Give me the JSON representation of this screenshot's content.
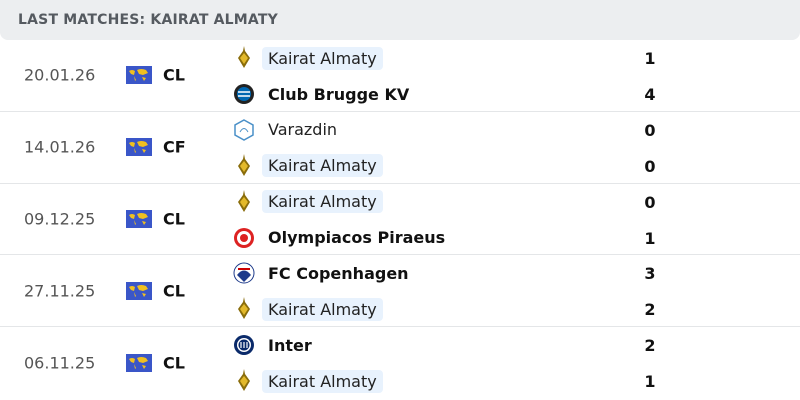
{
  "header": {
    "title": "LAST MATCHES: KAIRAT ALMATY"
  },
  "matches": [
    {
      "date": "20.01.26",
      "competition": "CL",
      "home": {
        "name": "Kairat Almaty",
        "logo": "kairat-logo",
        "highlight": true,
        "winner": false,
        "score": "1"
      },
      "away": {
        "name": "Club Brugge KV",
        "logo": "club-brugge-logo",
        "highlight": false,
        "winner": true,
        "score": "4"
      }
    },
    {
      "date": "14.01.26",
      "competition": "CF",
      "home": {
        "name": "Varazdin",
        "logo": "varazdin-logo",
        "highlight": false,
        "winner": false,
        "score": "0"
      },
      "away": {
        "name": "Kairat Almaty",
        "logo": "kairat-logo",
        "highlight": true,
        "winner": false,
        "score": "0"
      }
    },
    {
      "date": "09.12.25",
      "competition": "CL",
      "home": {
        "name": "Kairat Almaty",
        "logo": "kairat-logo",
        "highlight": true,
        "winner": false,
        "score": "0"
      },
      "away": {
        "name": "Olympiacos Piraeus",
        "logo": "olympiacos-logo",
        "highlight": false,
        "winner": true,
        "score": "1"
      }
    },
    {
      "date": "27.11.25",
      "competition": "CL",
      "home": {
        "name": "FC Copenhagen",
        "logo": "copenhagen-logo",
        "highlight": false,
        "winner": true,
        "score": "3"
      },
      "away": {
        "name": "Kairat Almaty",
        "logo": "kairat-logo",
        "highlight": true,
        "winner": false,
        "score": "2"
      }
    },
    {
      "date": "06.11.25",
      "competition": "CL",
      "home": {
        "name": "Inter",
        "logo": "inter-logo",
        "highlight": false,
        "winner": true,
        "score": "2"
      },
      "away": {
        "name": "Kairat Almaty",
        "logo": "kairat-logo",
        "highlight": true,
        "winner": false,
        "score": "1"
      }
    }
  ],
  "colors": {
    "highlight": "#e8f2fd",
    "header_bg": "#eceef0",
    "competition_flag": "#3a56c8"
  }
}
